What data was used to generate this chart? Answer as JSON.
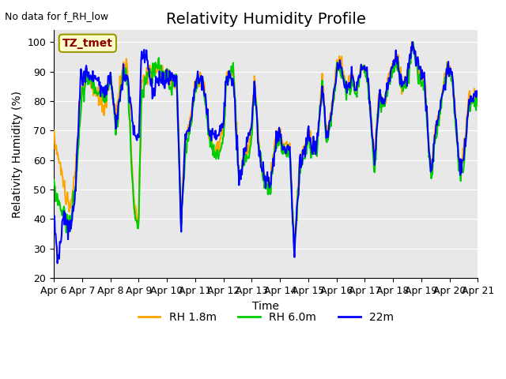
{
  "title": "Relativity Humidity Profile",
  "note": "No data for f_RH_low",
  "xlabel": "Time",
  "ylabel": "Relativity Humidity (%)",
  "legend_label_1": "RH 1.8m",
  "legend_label_2": "RH 6.0m",
  "legend_label_3": "22m",
  "color_1": "#FFA500",
  "color_2": "#00CC00",
  "color_3": "#0000FF",
  "ylim": [
    20,
    104
  ],
  "yticks": [
    20,
    30,
    40,
    50,
    60,
    70,
    80,
    90,
    100
  ],
  "x_labels": [
    "Apr 6",
    "Apr 7",
    "Apr 8",
    "Apr 9",
    "Apr 10",
    "Apr 11",
    "Apr 12",
    "Apr 13",
    "Apr 14",
    "Apr 15",
    "Apr 16",
    "Apr 17",
    "Apr 18",
    "Apr 19",
    "Apr 20",
    "Apr 21"
  ],
  "bg_color": "#E8E8E8",
  "box_color": "#FFFFCC",
  "box_text": "TZ_tmet",
  "box_text_color": "#8B0000",
  "title_fontsize": 14,
  "label_fontsize": 10,
  "tick_fontsize": 9,
  "linewidth": 1.5
}
